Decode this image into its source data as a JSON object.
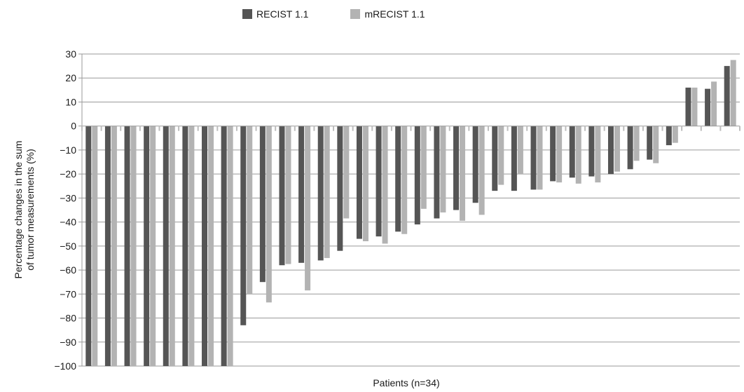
{
  "chart_data": {
    "type": "bar",
    "xlabel": "Patients (n=34)",
    "ylabel_line1": "Percentage changes in the sum",
    "ylabel_line2": "of tumor measurements (%)",
    "ylim": [
      -100,
      30
    ],
    "yticks": [
      "30",
      "20",
      "10",
      "0",
      "−10",
      "−20",
      "−30",
      "−40",
      "−50",
      "−60",
      "−70",
      "−80",
      "−90",
      "−100"
    ],
    "grid": true,
    "legend_position": "top-center",
    "series": [
      {
        "name": "RECIST 1.1",
        "color": "#555555",
        "values": [
          -100,
          -100,
          -100,
          -100,
          -100,
          -100,
          -100,
          -100,
          -83,
          -65,
          -58,
          -57,
          -56,
          -52,
          -47,
          -46,
          -44,
          -41,
          -38.5,
          -35,
          -32,
          -27,
          -27,
          -26.5,
          -23,
          -21.5,
          -21,
          -20,
          -18,
          -14,
          -8,
          16,
          15.5,
          25
        ]
      },
      {
        "name": "mRECIST 1.1",
        "color": "#b3b3b3",
        "values": [
          -100,
          -100,
          -100,
          -100,
          -100,
          -100,
          -100,
          -100,
          -70,
          -73.5,
          -57.5,
          -68.5,
          -55,
          -38.5,
          -48,
          -49,
          -45,
          -34.5,
          -36,
          -39.5,
          -37,
          -24.5,
          -20,
          -26.5,
          -23.5,
          -24,
          -23.5,
          -19,
          -14.5,
          -15.5,
          -7,
          16,
          18.5,
          27.5
        ]
      }
    ]
  }
}
